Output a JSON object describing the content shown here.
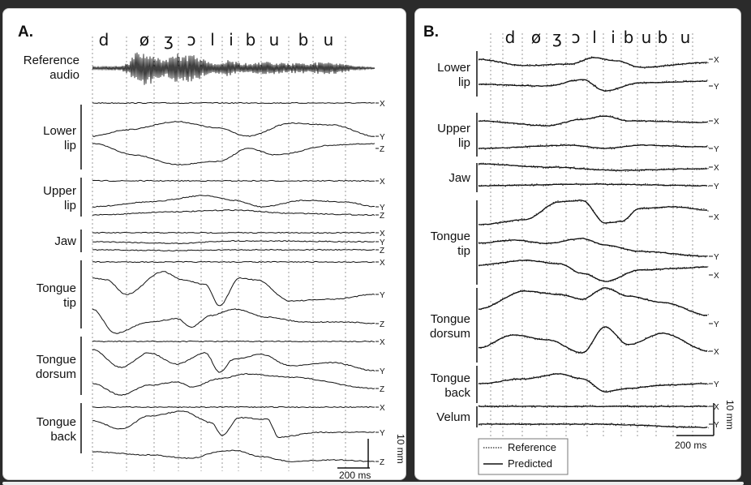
{
  "chart_data": [
    {
      "type": "line",
      "panel_label": "A.",
      "phonemes": [
        "d",
        "ø",
        "ʒ",
        "ɔ",
        "l",
        "i",
        "b",
        "u",
        "b",
        "u"
      ],
      "audio_label": [
        "Reference",
        "audio"
      ],
      "groups": [
        {
          "label": [
            "Lower",
            "lip"
          ],
          "axes": [
            "X",
            "Y",
            "Z"
          ]
        },
        {
          "label": [
            "Upper",
            "lip"
          ],
          "axes": [
            "X",
            "Y",
            "Z"
          ]
        },
        {
          "label": [
            "Jaw"
          ],
          "axes": [
            "X",
            "Y",
            "Z"
          ]
        },
        {
          "label": [
            "Tongue",
            "tip"
          ],
          "axes": [
            "X",
            "Y",
            "Z"
          ]
        },
        {
          "label": [
            "Tongue",
            "dorsum"
          ],
          "axes": [
            "X",
            "Y",
            "Z"
          ]
        },
        {
          "label": [
            "Tongue",
            "back"
          ],
          "axes": [
            "X",
            "Y",
            "Z"
          ]
        }
      ],
      "scalebar_vertical": "10 mm",
      "scalebar_horizontal": "200 ms"
    },
    {
      "type": "line",
      "panel_label": "B.",
      "phonemes": [
        "d",
        "ø",
        "ʒ",
        "ɔ",
        "l",
        "i",
        "b",
        "u",
        "b",
        "u"
      ],
      "groups": [
        {
          "label": [
            "Lower",
            "lip"
          ],
          "axes": [
            "X",
            "Y"
          ]
        },
        {
          "label": [
            "Upper",
            "lip"
          ],
          "axes": [
            "X",
            "Y"
          ]
        },
        {
          "label": [
            "Jaw"
          ],
          "axes": [
            "X",
            "Y"
          ]
        },
        {
          "label": [
            "Tongue",
            "tip"
          ],
          "axes": [
            "X",
            "Y",
            "X"
          ]
        },
        {
          "label": [
            "Tongue",
            "dorsum"
          ],
          "axes": [
            "Y",
            "X"
          ]
        },
        {
          "label": [
            "Tongue",
            "back"
          ],
          "axes": [
            "Y"
          ]
        },
        {
          "label": [
            "Velum"
          ],
          "axes": [
            "X",
            "Y"
          ]
        }
      ],
      "legend": [
        {
          "name": "Reference",
          "style": "dotted"
        },
        {
          "name": "Predicted",
          "style": "solid"
        }
      ],
      "scalebar_vertical": "10 mm",
      "scalebar_horizontal": "200 ms"
    }
  ]
}
